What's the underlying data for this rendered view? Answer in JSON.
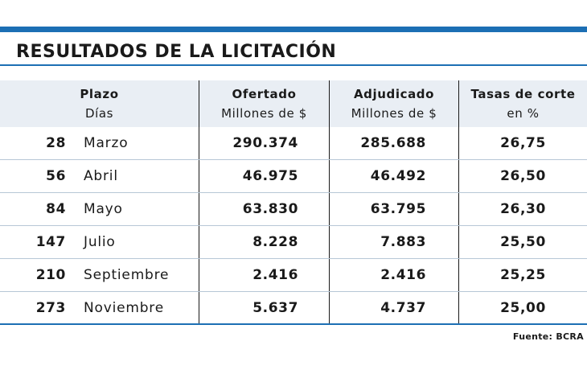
{
  "title": "RESULTADOS DE LA LICITACIÓN",
  "colors": {
    "accent": "#1c6fb4",
    "header_bg": "#e9eef4"
  },
  "header": {
    "plazo": "Plazo",
    "plazo_sub": "Días",
    "ofertado": "Ofertado",
    "ofertado_sub": "Millones de $",
    "adjudicado": "Adjudicado",
    "adjudicado_sub": "Millones de $",
    "tasas": "Tasas de corte",
    "tasas_sub": "en %"
  },
  "rows": [
    {
      "days": "28",
      "month": "Marzo",
      "ofertado": "290.374",
      "adjudicado": "285.688",
      "tasa": "26,75"
    },
    {
      "days": "56",
      "month": "Abril",
      "ofertado": "46.975",
      "adjudicado": "46.492",
      "tasa": "26,50"
    },
    {
      "days": "84",
      "month": "Mayo",
      "ofertado": "63.830",
      "adjudicado": "63.795",
      "tasa": "26,30"
    },
    {
      "days": "147",
      "month": "Julio",
      "ofertado": "8.228",
      "adjudicado": "7.883",
      "tasa": "25,50"
    },
    {
      "days": "210",
      "month": "Septiembre",
      "ofertado": "2.416",
      "adjudicado": "2.416",
      "tasa": "25,25"
    },
    {
      "days": "273",
      "month": "Noviembre",
      "ofertado": "5.637",
      "adjudicado": "4.737",
      "tasa": "25,00"
    }
  ],
  "source": "Fuente: BCRA"
}
